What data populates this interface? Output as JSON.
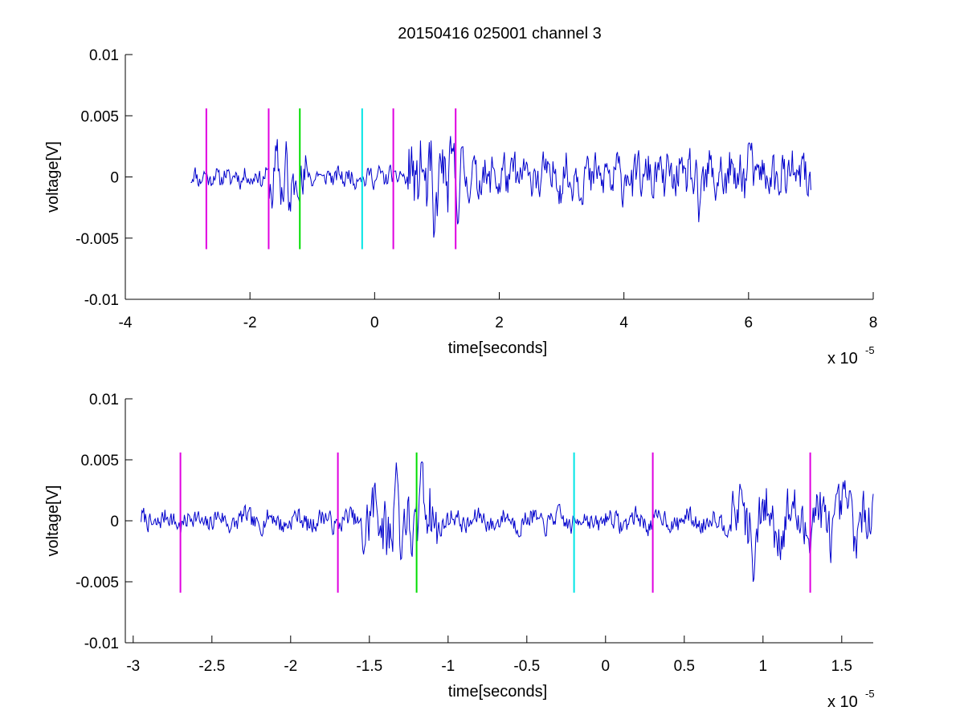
{
  "figure": {
    "title": "20150416 025001 channel 3",
    "background": "#ffffff"
  },
  "colors": {
    "signal": "#0000cc",
    "marker_magenta": "#e000e0",
    "marker_green": "#00dd00",
    "marker_cyan": "#00e5e5",
    "axes": "#000000"
  },
  "chart_data": [
    {
      "type": "line",
      "title": "20150416 025001 channel 3",
      "xlabel": "time[seconds]",
      "ylabel": "voltage[V]",
      "x_exponent_label": "x 10",
      "x_exponent": "-5",
      "xlim": [
        -4,
        8
      ],
      "ylim": [
        -0.01,
        0.01
      ],
      "x_ticks": [
        -4,
        -2,
        0,
        2,
        4,
        6,
        8
      ],
      "x_tick_labels": [
        "-4",
        "-2",
        "0",
        "2",
        "4",
        "6",
        "8"
      ],
      "y_ticks": [
        -0.01,
        -0.005,
        0,
        0.005,
        0.01
      ],
      "y_tick_labels": [
        "-0.01",
        "-0.005",
        "0",
        "0.005",
        "0.01"
      ],
      "grid": false,
      "series": [
        {
          "type": "noise-trace",
          "color": "#0000cc",
          "x_start": -2.95,
          "x_end": 7.0,
          "seed": 11,
          "segments": [
            {
              "x0": -2.95,
              "x1": -1.7,
              "amp": 0.0007
            },
            {
              "x0": -1.7,
              "x1": -1.1,
              "amp": 0.0022
            },
            {
              "x0": -1.1,
              "x1": 0.5,
              "amp": 0.0007
            },
            {
              "x0": 0.5,
              "x1": 1.4,
              "amp": 0.0025
            },
            {
              "x0": 1.4,
              "x1": 5.0,
              "amp": 0.0016
            },
            {
              "x0": 5.0,
              "x1": 7.0,
              "amp": 0.0018
            }
          ],
          "peaks": [
            {
              "x": -1.4,
              "y": 0.0048
            },
            {
              "x": -1.38,
              "y": -0.0032
            },
            {
              "x": 0.95,
              "y": -0.0053
            },
            {
              "x": 6.0,
              "y": 0.0031
            },
            {
              "x": 5.2,
              "y": -0.0037
            }
          ]
        }
      ],
      "markers": [
        {
          "x": -2.7,
          "y0": -0.0059,
          "y1": 0.0056,
          "color": "#e000e0"
        },
        {
          "x": -1.7,
          "y0": -0.0059,
          "y1": 0.0056,
          "color": "#e000e0"
        },
        {
          "x": -1.2,
          "y0": -0.0059,
          "y1": 0.0056,
          "color": "#00dd00"
        },
        {
          "x": -0.2,
          "y0": -0.0059,
          "y1": 0.0056,
          "color": "#00e5e5"
        },
        {
          "x": 0.3,
          "y0": -0.0059,
          "y1": 0.0056,
          "color": "#e000e0"
        },
        {
          "x": 1.3,
          "y0": -0.0059,
          "y1": 0.0056,
          "color": "#e000e0"
        }
      ]
    },
    {
      "type": "line",
      "xlabel": "time[seconds]",
      "ylabel": "voltage[V]",
      "x_exponent_label": "x 10",
      "x_exponent": "-5",
      "xlim": [
        -3.05,
        1.7
      ],
      "ylim": [
        -0.01,
        0.01
      ],
      "x_ticks": [
        -3,
        -2.5,
        -2,
        -1.5,
        -1,
        -0.5,
        0,
        0.5,
        1,
        1.5
      ],
      "x_tick_labels": [
        "-3",
        "-2.5",
        "-2",
        "-1.5",
        "-1",
        "-0.5",
        "0",
        "0.5",
        "1",
        "1.5"
      ],
      "y_ticks": [
        -0.01,
        -0.005,
        0,
        0.005,
        0.01
      ],
      "y_tick_labels": [
        "-0.01",
        "-0.005",
        "0",
        "0.005",
        "0.01"
      ],
      "grid": false,
      "series": [
        {
          "type": "noise-trace",
          "color": "#0000cc",
          "x_start": -2.95,
          "x_end": 1.7,
          "seed": 7,
          "segments": [
            {
              "x0": -2.95,
              "x1": -1.55,
              "amp": 0.0008
            },
            {
              "x0": -1.55,
              "x1": -1.05,
              "amp": 0.0026
            },
            {
              "x0": -1.05,
              "x1": 0.8,
              "amp": 0.0008
            },
            {
              "x0": 0.8,
              "x1": 1.7,
              "amp": 0.0022
            }
          ],
          "peaks": [
            {
              "x": -1.33,
              "y": 0.005
            },
            {
              "x": -1.3,
              "y": -0.0034
            },
            {
              "x": -1.17,
              "y": 0.0053
            },
            {
              "x": 0.86,
              "y": 0.0028
            },
            {
              "x": 0.94,
              "y": -0.0053
            },
            {
              "x": 1.55,
              "y": 0.0025
            }
          ]
        }
      ],
      "markers": [
        {
          "x": -2.7,
          "y0": -0.0059,
          "y1": 0.0056,
          "color": "#e000e0"
        },
        {
          "x": -1.7,
          "y0": -0.0059,
          "y1": 0.0056,
          "color": "#e000e0"
        },
        {
          "x": -1.2,
          "y0": -0.0059,
          "y1": 0.0056,
          "color": "#00dd00"
        },
        {
          "x": -0.2,
          "y0": -0.0059,
          "y1": 0.0056,
          "color": "#00e5e5"
        },
        {
          "x": 0.3,
          "y0": -0.0059,
          "y1": 0.0056,
          "color": "#e000e0"
        },
        {
          "x": 1.3,
          "y0": -0.0059,
          "y1": 0.0056,
          "color": "#e000e0"
        }
      ]
    }
  ]
}
